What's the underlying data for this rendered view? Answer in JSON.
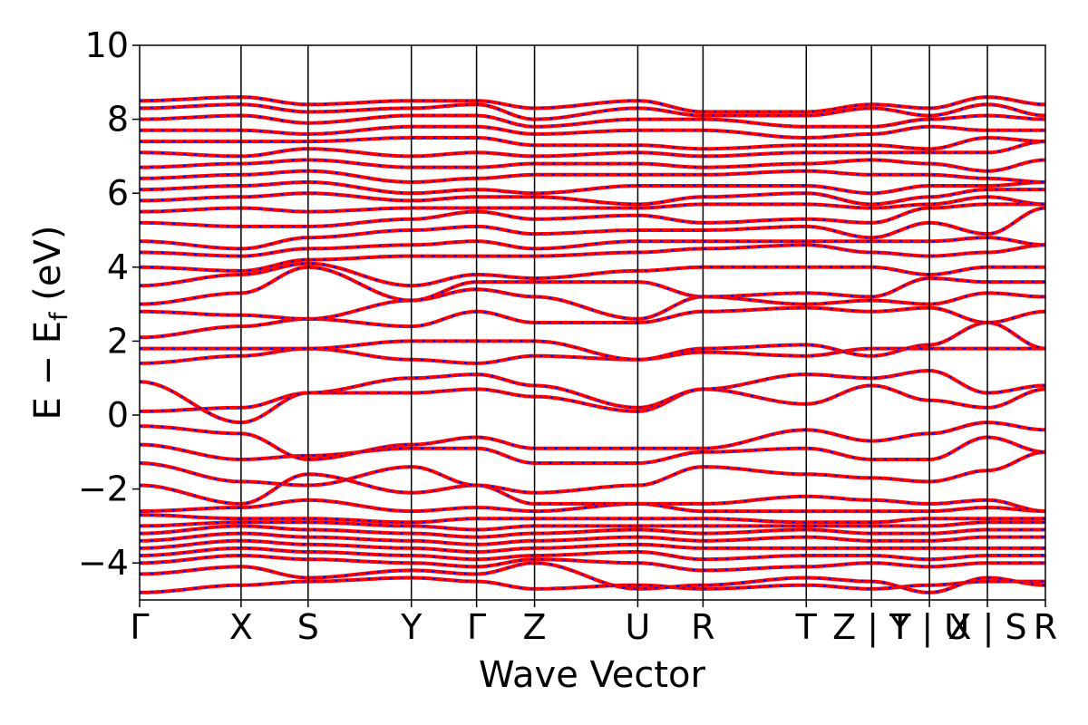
{
  "chart_data": {
    "type": "line",
    "title": "",
    "xlabel": "Wave Vector",
    "ylabel_main": "E − E",
    "ylabel_sub": "f",
    "ylabel_tail": " (eV)",
    "ylim": [
      -5,
      10
    ],
    "yticks": [
      {
        "value": -4,
        "label": "−4"
      },
      {
        "value": -2,
        "label": "−2"
      },
      {
        "value": 0,
        "label": "0"
      },
      {
        "value": 2,
        "label": "2"
      },
      {
        "value": 4,
        "label": "4"
      },
      {
        "value": 6,
        "label": "6"
      },
      {
        "value": 8,
        "label": "8"
      },
      {
        "value": 10,
        "label": "10"
      }
    ],
    "xlim": [
      0,
      1
    ],
    "kpoints": [
      {
        "x": 0.0,
        "label": "Γ"
      },
      {
        "x": 0.112,
        "label": "X"
      },
      {
        "x": 0.186,
        "label": "S"
      },
      {
        "x": 0.3,
        "label": "Y"
      },
      {
        "x": 0.372,
        "label": "Γ"
      },
      {
        "x": 0.436,
        "label": "Z"
      },
      {
        "x": 0.55,
        "label": "U"
      },
      {
        "x": 0.622,
        "label": "R"
      },
      {
        "x": 0.736,
        "label": "T"
      },
      {
        "x": 0.808,
        "label": "Z | Y"
      },
      {
        "x": 0.872,
        "label": "T | U"
      },
      {
        "x": 0.936,
        "label": "X | S"
      },
      {
        "x": 1.0,
        "label": "R"
      }
    ],
    "grid": false,
    "legend": "none",
    "line_color": "#ff0000",
    "dash_color": "#0000ff",
    "bands": [
      [
        -4.8,
        -4.6,
        -4.5,
        -4.4,
        -4.5,
        -4.7,
        -4.6,
        -4.7,
        -4.6,
        -4.7,
        -4.6,
        -4.5,
        -4.5
      ],
      [
        -4.3,
        -4.1,
        -4.4,
        -4.2,
        -4.3,
        -4.0,
        -4.7,
        -4.6,
        -4.4,
        -4.5,
        -4.8,
        -4.4,
        -4.6
      ],
      [
        -4.0,
        -3.8,
        -3.9,
        -4.0,
        -4.1,
        -3.9,
        -4.0,
        -4.2,
        -4.1,
        -4.0,
        -4.1,
        -4.0,
        -4.0
      ],
      [
        -3.8,
        -3.6,
        -3.7,
        -3.8,
        -3.9,
        -3.8,
        -3.7,
        -3.9,
        -3.8,
        -3.8,
        -3.9,
        -3.8,
        -3.8
      ],
      [
        -3.6,
        -3.4,
        -3.5,
        -3.6,
        -3.7,
        -3.6,
        -3.5,
        -3.6,
        -3.6,
        -3.6,
        -3.6,
        -3.6,
        -3.6
      ],
      [
        -3.4,
        -3.2,
        -3.3,
        -3.4,
        -3.5,
        -3.4,
        -3.3,
        -3.4,
        -3.3,
        -3.4,
        -3.4,
        -3.3,
        -3.3
      ],
      [
        -3.2,
        -3.0,
        -3.1,
        -3.2,
        -3.3,
        -3.2,
        -3.1,
        -3.2,
        -3.1,
        -3.2,
        -3.2,
        -3.1,
        -3.1
      ],
      [
        -3.0,
        -2.9,
        -2.9,
        -3.0,
        -3.1,
        -3.0,
        -3.0,
        -3.0,
        -3.0,
        -3.0,
        -3.0,
        -2.9,
        -2.9
      ],
      [
        -2.7,
        -2.8,
        -2.8,
        -2.9,
        -2.8,
        -2.8,
        -2.8,
        -2.8,
        -2.9,
        -2.9,
        -2.8,
        -2.8,
        -2.8
      ],
      [
        -2.6,
        -2.5,
        -2.3,
        -2.6,
        -2.5,
        -2.6,
        -2.4,
        -2.6,
        -2.6,
        -2.6,
        -2.6,
        -2.5,
        -2.6
      ],
      [
        -1.9,
        -2.4,
        -1.6,
        -2.1,
        -1.9,
        -2.4,
        -2.4,
        -2.4,
        -2.2,
        -2.3,
        -2.4,
        -2.3,
        -2.6
      ],
      [
        -1.3,
        -1.8,
        -1.9,
        -1.4,
        -1.9,
        -2.1,
        -1.9,
        -1.4,
        -1.6,
        -1.7,
        -1.8,
        -1.5,
        -1.0
      ],
      [
        -0.8,
        -1.2,
        -1.1,
        -0.9,
        -0.9,
        -1.3,
        -1.3,
        -1.0,
        -0.9,
        -1.2,
        -1.2,
        -0.6,
        -1.0
      ],
      [
        -0.3,
        -0.5,
        -1.2,
        -0.8,
        -0.6,
        -0.9,
        -0.9,
        -0.9,
        -0.4,
        -0.7,
        -0.5,
        -0.2,
        -0.4
      ],
      [
        0.1,
        0.2,
        0.6,
        0.6,
        0.7,
        0.5,
        0.1,
        0.7,
        0.3,
        0.8,
        0.4,
        0.2,
        0.7
      ],
      [
        0.9,
        -0.2,
        0.6,
        1.0,
        1.1,
        0.8,
        0.2,
        0.7,
        1.1,
        1.0,
        1.2,
        0.6,
        0.8
      ],
      [
        1.4,
        1.6,
        1.8,
        1.5,
        1.4,
        1.6,
        1.5,
        1.7,
        1.6,
        1.8,
        1.8,
        1.8,
        1.8
      ],
      [
        1.8,
        1.8,
        1.8,
        2.0,
        2.0,
        2.0,
        1.5,
        1.8,
        1.9,
        1.6,
        1.9,
        2.5,
        1.8
      ],
      [
        2.1,
        2.4,
        2.6,
        2.4,
        2.8,
        2.5,
        2.5,
        2.8,
        2.9,
        2.8,
        2.9,
        2.5,
        2.8
      ],
      [
        2.8,
        2.7,
        2.6,
        3.1,
        3.4,
        3.2,
        2.6,
        3.2,
        3.0,
        3.1,
        3.0,
        3.3,
        3.2
      ],
      [
        3.0,
        3.3,
        4.0,
        3.1,
        3.6,
        3.6,
        3.6,
        3.2,
        3.3,
        3.2,
        3.7,
        3.6,
        3.6
      ],
      [
        3.5,
        3.8,
        4.1,
        3.5,
        3.8,
        3.7,
        3.9,
        4.0,
        4.0,
        4.0,
        3.8,
        4.0,
        4.0
      ],
      [
        4.0,
        3.9,
        4.2,
        4.3,
        4.3,
        4.3,
        4.4,
        4.5,
        4.6,
        4.4,
        4.3,
        4.4,
        4.6
      ],
      [
        4.4,
        4.3,
        4.5,
        4.6,
        4.7,
        4.5,
        4.7,
        4.7,
        4.7,
        4.7,
        4.7,
        4.8,
        4.6
      ],
      [
        4.7,
        4.5,
        4.8,
        5.0,
        5.1,
        4.9,
        5.0,
        5.0,
        5.1,
        4.8,
        5.2,
        4.9,
        5.6
      ],
      [
        5.2,
        5.1,
        5.1,
        5.3,
        5.5,
        5.3,
        5.4,
        5.2,
        5.3,
        5.2,
        5.6,
        5.7,
        5.7
      ],
      [
        5.5,
        5.6,
        5.5,
        5.6,
        5.6,
        5.6,
        5.6,
        5.7,
        5.7,
        5.6,
        5.7,
        5.9,
        5.7
      ],
      [
        5.8,
        5.9,
        6.0,
        5.8,
        5.9,
        5.9,
        5.7,
        5.9,
        6.0,
        5.7,
        5.9,
        6.1,
        6.1
      ],
      [
        6.1,
        6.2,
        6.3,
        6.0,
        6.1,
        6.0,
        6.2,
        6.2,
        6.2,
        6.0,
        6.2,
        6.2,
        6.3
      ],
      [
        6.4,
        6.5,
        6.6,
        6.3,
        6.4,
        6.5,
        6.5,
        6.5,
        6.6,
        6.5,
        6.5,
        6.4,
        6.3
      ],
      [
        6.7,
        6.8,
        6.9,
        6.7,
        6.7,
        6.8,
        6.8,
        6.7,
        6.8,
        6.9,
        6.8,
        6.6,
        6.9
      ],
      [
        7.1,
        7.0,
        7.2,
        7.0,
        7.1,
        7.0,
        7.1,
        7.0,
        7.1,
        7.1,
        7.1,
        7.1,
        7.4
      ],
      [
        7.4,
        7.4,
        7.4,
        7.5,
        7.5,
        7.3,
        7.3,
        7.2,
        7.3,
        7.3,
        7.2,
        7.5,
        7.4
      ],
      [
        7.7,
        7.7,
        7.6,
        7.8,
        7.8,
        7.6,
        7.7,
        7.7,
        7.5,
        7.6,
        7.8,
        7.7,
        7.7
      ],
      [
        8.0,
        8.1,
        7.9,
        8.1,
        8.1,
        7.8,
        8.0,
        8.0,
        7.8,
        7.8,
        8.0,
        8.1,
        8.0
      ],
      [
        8.3,
        8.4,
        8.2,
        8.3,
        8.4,
        8.0,
        8.3,
        8.1,
        8.1,
        8.3,
        8.1,
        8.4,
        8.1
      ],
      [
        8.5,
        8.6,
        8.4,
        8.5,
        8.5,
        8.3,
        8.5,
        8.2,
        8.2,
        8.4,
        8.3,
        8.6,
        8.4
      ]
    ]
  }
}
